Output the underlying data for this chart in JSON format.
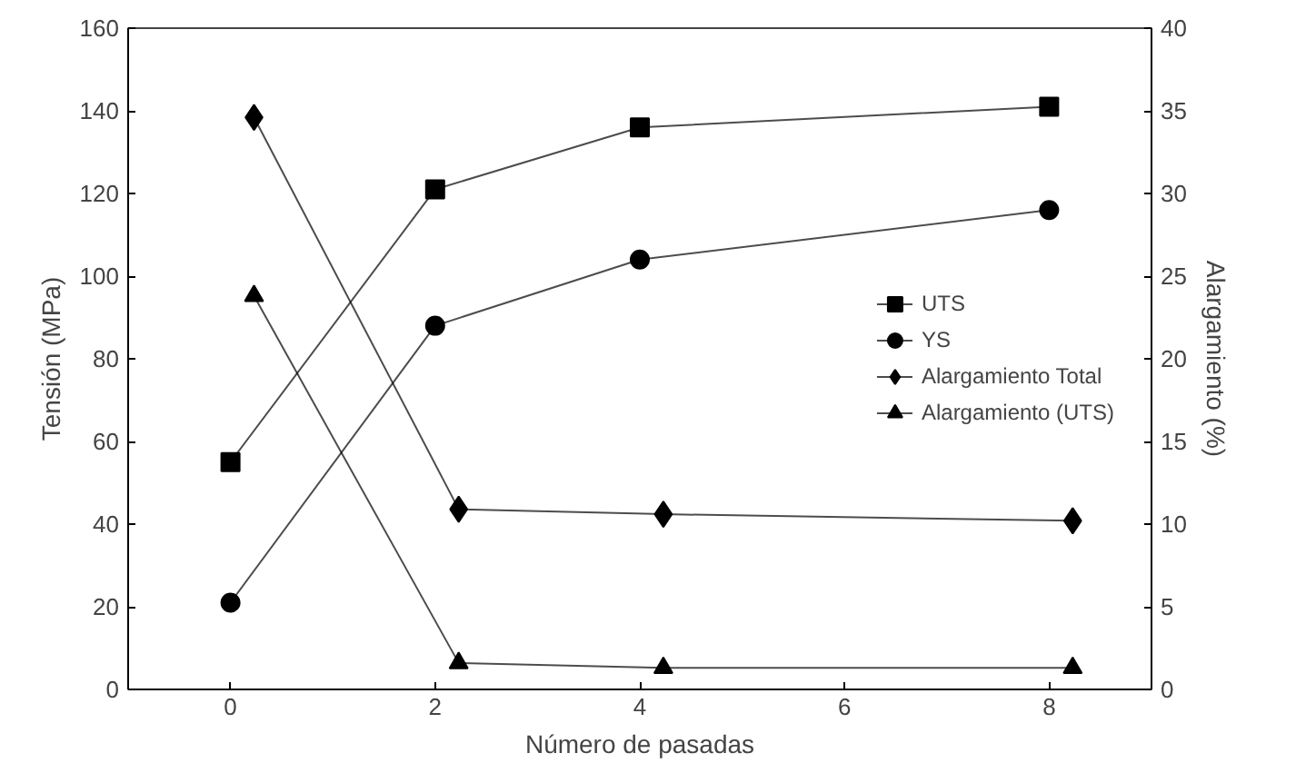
{
  "chart_data": {
    "type": "line",
    "xlabel": "Número de pasadas",
    "ylabel": "Tensión (MPa)",
    "y2label": "Alargamiento (%)",
    "xlim": [
      -1,
      9
    ],
    "xticks": [
      0,
      2,
      4,
      6,
      8
    ],
    "ylim": [
      0,
      160
    ],
    "yticks": [
      0,
      20,
      40,
      60,
      80,
      100,
      120,
      140,
      160
    ],
    "y2lim": [
      0,
      40
    ],
    "y2ticks": [
      0,
      5,
      10,
      15,
      20,
      25,
      30,
      35,
      40
    ],
    "grid": false,
    "legend": "right",
    "line_style": "solid",
    "series": [
      {
        "name": "UTS",
        "color": "#000000",
        "marker": "square",
        "x": [
          0,
          2,
          4,
          8
        ],
        "values": [
          55,
          121,
          136,
          141
        ]
      },
      {
        "name": "YS",
        "color": "#000000",
        "marker": "circle",
        "x": [
          0,
          2,
          4,
          8
        ],
        "values": [
          21,
          88,
          104,
          116
        ]
      },
      {
        "name": "Alargamiento Total",
        "color": "#000000",
        "marker": "diamond",
        "axis": "y2",
        "x": [
          0.23,
          2.23,
          4.23,
          8.23
        ],
        "values": [
          34.6,
          10.9,
          10.6,
          10.2
        ]
      },
      {
        "name": "Alargamiento (UTS)",
        "color": "#000000",
        "marker": "triangle",
        "axis": "y2",
        "x": [
          0.23,
          2.23,
          4.23,
          8.23
        ],
        "values": [
          23.8,
          1.6,
          1.3,
          1.3
        ]
      }
    ]
  }
}
